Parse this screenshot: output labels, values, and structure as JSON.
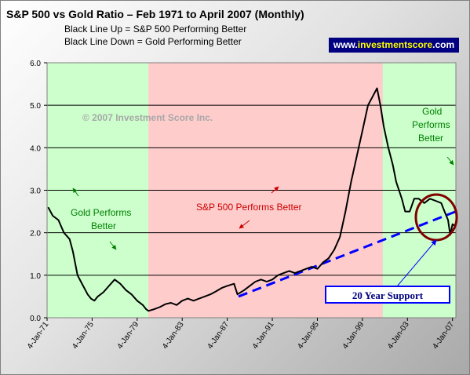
{
  "header": {
    "title": "S&P 500 vs Gold Ratio – Feb 1971 to April 2007 (Monthly)",
    "subtitle_lines": [
      "Black Line Up = S&P 500 Performing Better",
      "Black Line Down = Gold Performing Better"
    ],
    "brand_prefix": "www.",
    "brand_highlight": "investmentscore",
    "brand_suffix": ".com"
  },
  "colors": {
    "gold_region": "#ccffcc",
    "sp_region": "#ffcccc",
    "ratio_line": "#000000",
    "support_line": "#0000ff",
    "circle": "#800000",
    "annotation_green": "#008000",
    "annotation_red": "#cc0000",
    "support_box_text": "#000080"
  },
  "chart_data": {
    "type": "line",
    "title": "S&P 500 vs Gold Ratio – Feb 1971 to April 2007 (Monthly)",
    "xlabel": "",
    "ylabel": "",
    "ylim": [
      0,
      6
    ],
    "yticks": [
      "0.0",
      "1.0",
      "2.0",
      "3.0",
      "4.0",
      "5.0",
      "6.0"
    ],
    "xticks": [
      "4-Jan-71",
      "4-Jan-75",
      "4-Jan-79",
      "4-Jan-83",
      "4-Jan-87",
      "4-Jan-91",
      "4-Jan-95",
      "4-Jan-99",
      "4-Jan-03",
      "4-Jan-07"
    ],
    "xlim": [
      1971.0,
      2007.3
    ],
    "grid": true,
    "legend": "none",
    "series": [
      {
        "x": [
          1971.1,
          1971.5,
          1972.0,
          1972.5,
          1973.0,
          1973.3,
          1973.7,
          1974.0,
          1974.3,
          1974.6,
          1974.9,
          1975.2,
          1975.5,
          1976.0,
          1976.5,
          1977.0,
          1977.5,
          1978.0,
          1978.5,
          1979.0,
          1979.5,
          1979.8,
          1980.0,
          1980.5,
          1981.0,
          1981.5,
          1982.0,
          1982.5,
          1983.0,
          1983.5,
          1984.0,
          1984.5,
          1985.0,
          1985.5,
          1986.0,
          1986.5,
          1987.0,
          1987.6,
          1987.9,
          1988.5,
          1989.0,
          1989.5,
          1990.0,
          1990.5,
          1991.0,
          1991.5,
          1992.0,
          1992.5,
          1993.0,
          1993.5,
          1994.0,
          1994.5,
          1995.0,
          1995.5,
          1996.0,
          1996.5,
          1997.0,
          1997.5,
          1998.0,
          1998.5,
          1999.0,
          1999.5,
          1999.9,
          2000.3,
          2000.6,
          2000.9,
          2001.3,
          2001.7,
          2002.0,
          2002.5,
          2002.8,
          2003.2,
          2003.6,
          2004.0,
          2004.5,
          2005.0,
          2005.5,
          2006.0,
          2006.3,
          2006.6,
          2006.8,
          2007.0,
          2007.3
        ],
        "y": [
          2.6,
          2.4,
          2.3,
          2.0,
          1.85,
          1.55,
          1.0,
          0.85,
          0.7,
          0.55,
          0.45,
          0.4,
          0.5,
          0.6,
          0.75,
          0.9,
          0.8,
          0.65,
          0.55,
          0.4,
          0.3,
          0.2,
          0.16,
          0.2,
          0.25,
          0.32,
          0.35,
          0.3,
          0.4,
          0.45,
          0.4,
          0.45,
          0.5,
          0.55,
          0.62,
          0.7,
          0.75,
          0.8,
          0.55,
          0.65,
          0.75,
          0.85,
          0.9,
          0.85,
          0.9,
          1.0,
          1.05,
          1.1,
          1.05,
          1.1,
          1.15,
          1.2,
          1.15,
          1.3,
          1.4,
          1.6,
          1.9,
          2.5,
          3.2,
          3.8,
          4.4,
          5.0,
          5.2,
          5.4,
          5.0,
          4.5,
          4.0,
          3.6,
          3.2,
          2.8,
          2.5,
          2.5,
          2.8,
          2.8,
          2.7,
          2.8,
          2.75,
          2.7,
          2.5,
          2.3,
          1.95,
          2.2,
          2.15
        ]
      }
    ],
    "regions": [
      {
        "from": 1971.0,
        "to": 1980.0,
        "label": "Gold Performs Better"
      },
      {
        "from": 1980.0,
        "to": 2000.8,
        "label": "S&P 500 Performs Better"
      },
      {
        "from": 2000.8,
        "to": 2007.3,
        "label": "Gold Performs Better"
      }
    ],
    "support_line": {
      "label": "20 Year Support",
      "from": [
        1988.0,
        0.5
      ],
      "to": [
        2007.3,
        2.5
      ]
    },
    "annotations": {
      "copyright": "© 2007 Investment Score Inc.",
      "gold_left_1": "Gold Performs",
      "gold_left_2": "Better",
      "sp_middle": "S&P 500 Performs Better",
      "gold_right_1": "Gold",
      "gold_right_2": "Performs",
      "gold_right_3": "Better",
      "support": "20 Year Support"
    }
  }
}
